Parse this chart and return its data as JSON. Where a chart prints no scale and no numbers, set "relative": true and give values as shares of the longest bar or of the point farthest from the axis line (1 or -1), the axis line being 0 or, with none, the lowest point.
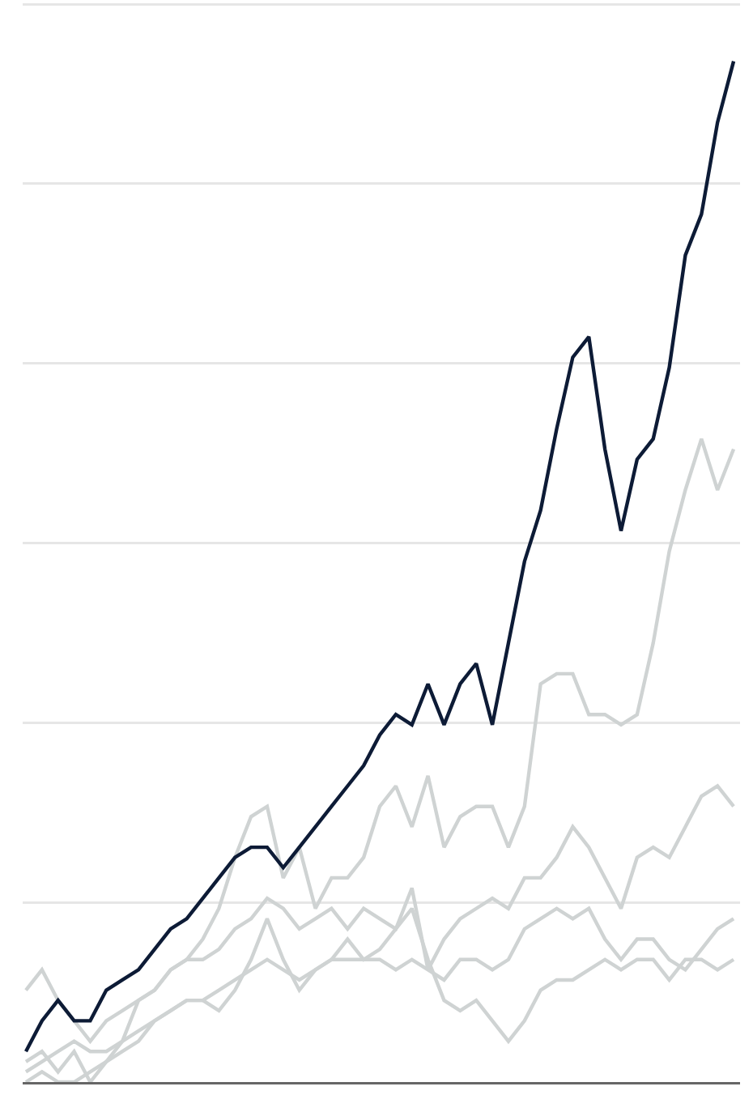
{
  "chart_data": {
    "type": "line",
    "relative": true,
    "grid": "y",
    "categories": [
      null,
      null,
      null,
      null,
      null,
      null,
      null,
      null,
      null,
      null,
      null,
      null,
      null,
      null,
      null,
      null,
      null,
      null,
      null,
      null,
      null,
      null,
      null,
      null,
      null,
      null,
      null,
      null,
      null,
      null,
      null,
      null,
      null,
      null,
      null,
      null,
      null,
      null,
      null,
      null,
      null,
      null,
      null,
      null,
      null
    ],
    "series": [
      {
        "color": "#cfd3d3",
        "values": [
          0.0,
          0.01,
          0.0,
          0,
          0.01,
          0.02,
          0.03,
          0.04,
          0.06,
          0.07,
          0.08,
          0.08,
          0.07,
          0.09,
          0.12,
          0.16,
          0.12,
          0.09,
          0.11,
          0.12,
          0.14,
          0.12,
          0.13,
          0.15,
          0.17,
          0.12,
          0.08,
          0.07,
          0.08,
          0.06,
          0.04,
          0.06,
          0.09,
          0.1,
          0.1,
          0.11,
          0.12,
          0.11,
          0.12,
          0.12,
          0.1,
          0.12,
          0.12,
          0.11,
          0.12
        ]
      },
      {
        "color": "#cfd3d3",
        "values": [
          0.01,
          0.02,
          0.03,
          0.04,
          0.03,
          0.03,
          0.04,
          0.05,
          0.06,
          0.07,
          0.08,
          0.08,
          0.09,
          0.1,
          0.11,
          0.12,
          0.11,
          0.1,
          0.11,
          0.12,
          0.12,
          0.12,
          0.12,
          0.11,
          0.12,
          0.11,
          0.1,
          0.12,
          0.12,
          0.11,
          0.12,
          0.15,
          0.16,
          0.17,
          0.16,
          0.17,
          0.14,
          0.12,
          0.14,
          0.14,
          0.12,
          0.11,
          0.13,
          0.15,
          0.16
        ]
      },
      {
        "color": "#cfd3d3",
        "values": [
          0.09,
          0.11,
          0.08,
          0.06,
          0.04,
          0.06,
          0.07,
          0.08,
          0.09,
          0.11,
          0.12,
          0.12,
          0.13,
          0.15,
          0.16,
          0.18,
          0.17,
          0.15,
          0.16,
          0.17,
          0.15,
          0.17,
          0.16,
          0.15,
          0.19,
          0.11,
          0.14,
          0.16,
          0.17,
          0.18,
          0.17,
          0.2,
          0.2,
          0.22,
          0.25,
          0.23,
          0.2,
          0.17,
          0.22,
          0.23,
          0.22,
          0.25,
          0.28,
          0.29,
          0.27
        ]
      },
      {
        "color": "#cfd3d3",
        "values": [
          0.02,
          0.03,
          0.01,
          0.03,
          0.0,
          0.02,
          0.04,
          0.08,
          0.09,
          0.11,
          0.12,
          0.14,
          0.17,
          0.22,
          0.26,
          0.27,
          0.2,
          0.23,
          0.17,
          0.2,
          0.2,
          0.22,
          0.27,
          0.29,
          0.25,
          0.3,
          0.23,
          0.26,
          0.27,
          0.27,
          0.23,
          0.27,
          0.39,
          0.4,
          0.4,
          0.36,
          0.36,
          0.35,
          0.36,
          0.43,
          0.52,
          0.58,
          0.63,
          0.58,
          0.62
        ]
      },
      {
        "color": "#0d1b36",
        "values": [
          0.03,
          0.06,
          0.08,
          0.06,
          0.06,
          0.09,
          0.1,
          0.11,
          0.13,
          0.15,
          0.16,
          0.18,
          0.2,
          0.22,
          0.23,
          0.23,
          0.21,
          0.23,
          0.25,
          0.27,
          0.29,
          0.31,
          0.34,
          0.36,
          0.35,
          0.39,
          0.35,
          0.39,
          0.41,
          0.35,
          0.43,
          0.51,
          0.56,
          0.64,
          0.71,
          0.73,
          0.62,
          0.54,
          0.61,
          0.63,
          0.7,
          0.81,
          0.85,
          0.94,
          1
        ]
      }
    ]
  }
}
